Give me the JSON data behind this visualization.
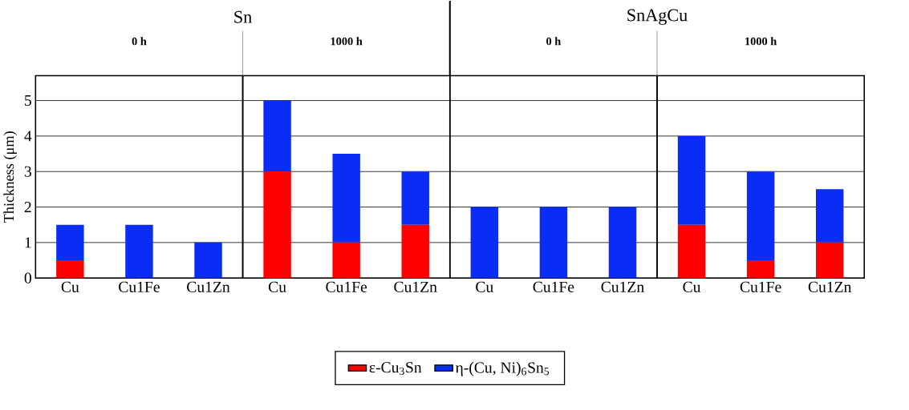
{
  "chart_data": [
    {
      "type": "bar",
      "stacked": true,
      "title": "0 h",
      "ylabel": "Thickness (μm)",
      "annotations": [
        "Sn"
      ],
      "categories": [
        "Cu",
        "Cu1Fe",
        "Cu1Zn"
      ],
      "series": [
        {
          "name": "ε-Cu$_{3}$Sn",
          "color": "#ff0000",
          "values": [
            0.5,
            0,
            0
          ]
        },
        {
          "name": "η-(Cu, Ni)$_{6}$Sn$_{5}$",
          "color": "#0a2cf5",
          "values": [
            1,
            1.5,
            1
          ]
        }
      ],
      "ylim": [
        0,
        5.7
      ],
      "yticks": [
        0,
        1,
        2,
        3,
        4,
        5
      ],
      "grid": "y",
      "legend": "bottom"
    },
    {
      "type": "bar",
      "stacked": true,
      "title": "1000 h",
      "categories": [
        "Cu",
        "Cu1Fe",
        "Cu1Zn"
      ],
      "series": [
        {
          "color": "#ff0000",
          "values": [
            3,
            1,
            1.5
          ]
        },
        {
          "color": "#0a2cf5",
          "values": [
            2,
            2.5,
            1.5
          ]
        }
      ],
      "ylim": [
        0,
        5.7
      ],
      "yticks": [
        0,
        1,
        2,
        3,
        4,
        5
      ],
      "grid": "y",
      "tick_labels": "x"
    },
    {
      "type": "bar",
      "stacked": true,
      "title": "0 h",
      "annotations": [
        "SnAgCu"
      ],
      "categories": [
        "Cu",
        "Cu1Fe",
        "Cu1Zn"
      ],
      "series": [
        {
          "color": "#ff0000",
          "values": [
            0,
            0,
            0
          ]
        },
        {
          "color": "#0a2cf5",
          "values": [
            2,
            2,
            2
          ]
        }
      ],
      "ylim": [
        0,
        5.7
      ],
      "yticks": [
        0,
        1,
        2,
        3,
        4,
        5
      ],
      "grid": "y",
      "tick_labels": "x"
    },
    {
      "type": "bar",
      "stacked": true,
      "title": "1000 h",
      "categories": [
        "Cu",
        "Cu1Fe",
        "Cu1Zn"
      ],
      "series": [
        {
          "color": "#ff0000",
          "values": [
            1.5,
            0.5,
            1
          ]
        },
        {
          "color": "#0a2cf5",
          "values": [
            2.5,
            2.5,
            1.5
          ]
        }
      ],
      "ylim": [
        0,
        5.7
      ],
      "yticks": [
        0,
        1,
        2,
        3,
        4,
        5
      ],
      "grid": "y",
      "tick_labels": "x"
    }
  ]
}
